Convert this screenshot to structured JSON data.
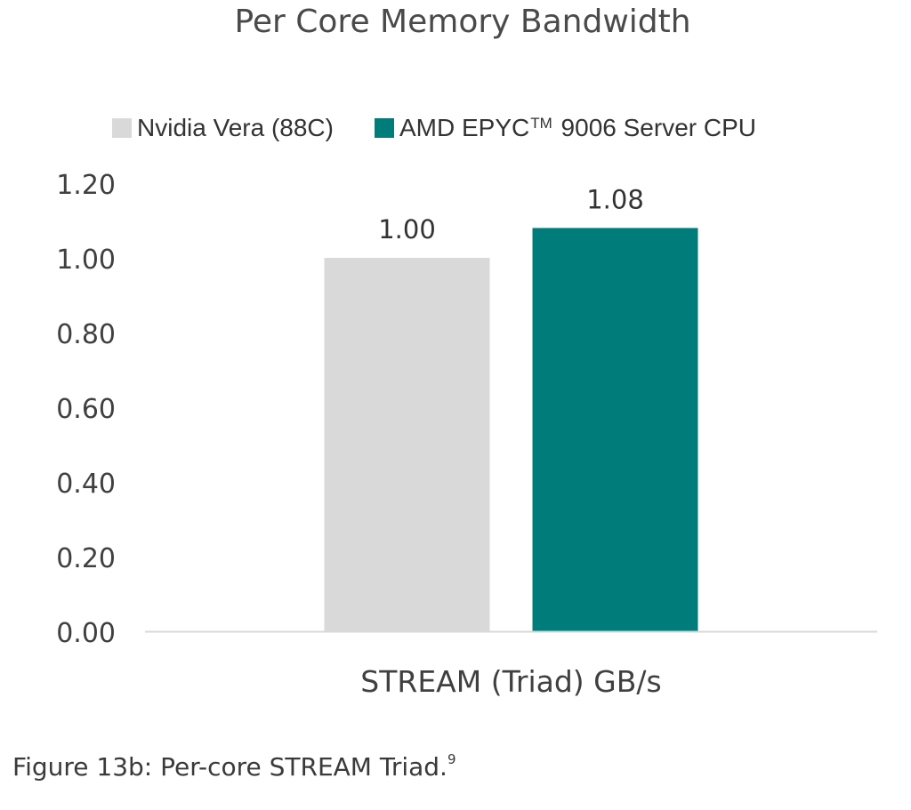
{
  "chart_data": {
    "type": "bar",
    "title": "Per Core Memory Bandwidth",
    "categories": [
      "STREAM (Triad) GB/s"
    ],
    "series": [
      {
        "name": "Nvidia Vera (88C)",
        "values": [
          1.0
        ],
        "color": "#D9D9D9",
        "label": "1.00"
      },
      {
        "name": "AMD EPYC™ 9006 Server CPU",
        "values": [
          1.08
        ],
        "color": "#007C7A",
        "label": "1.08"
      }
    ],
    "legend": {
      "position": "top",
      "items": [
        {
          "text": "Nvidia Vera (88C)",
          "color": "#D9D9D9"
        },
        {
          "text_before": "AMD EPYC",
          "text_sup": "TM",
          "text_after": " 9006 Server CPU",
          "color": "#007C7A"
        }
      ]
    },
    "yticks": [
      "0.00",
      "0.20",
      "0.40",
      "0.60",
      "0.80",
      "1.00",
      "1.20"
    ],
    "ylim": [
      0,
      1.2
    ],
    "grid": false
  },
  "caption": {
    "text": "Figure 13b: Per-core STREAM Triad.",
    "footnote": "9"
  }
}
